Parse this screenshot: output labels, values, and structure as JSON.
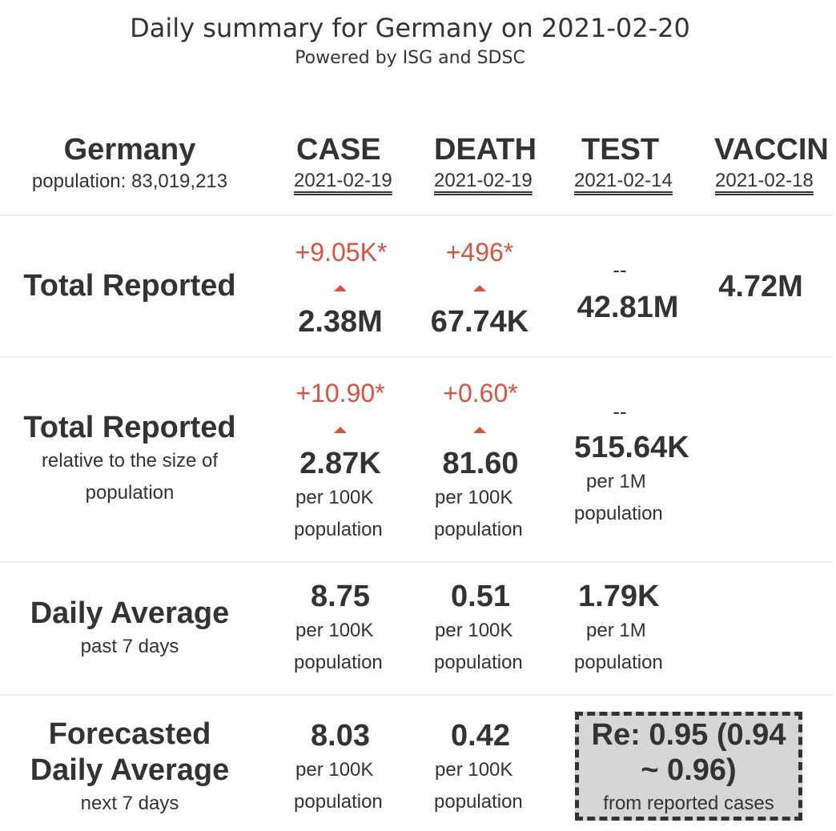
{
  "header": {
    "title": "Daily summary for Germany on 2021-02-20",
    "subtitle": "Powered by ISG and SDSC"
  },
  "country": {
    "name": "Germany",
    "population_label": "population: 83,019,213"
  },
  "columns": {
    "case": {
      "label": "CASE",
      "date": "2021-02-19"
    },
    "death": {
      "label": "DEATH",
      "date": "2021-02-19"
    },
    "test": {
      "label": "TEST",
      "date": "2021-02-14"
    },
    "vaccine": {
      "label": "VACCIN",
      "date": "2021-02-18"
    }
  },
  "rows": {
    "total": {
      "title": "Total Reported",
      "case": {
        "delta": "+9.05K*",
        "value": "2.38M"
      },
      "death": {
        "delta": "+496*",
        "value": "67.74K"
      },
      "test": {
        "delta": "--",
        "value": "42.81M"
      },
      "vaccine": {
        "value": "4.72M"
      }
    },
    "relative": {
      "title": "Total Reported",
      "subtitle_1": "relative to the size of",
      "subtitle_2": "population",
      "case": {
        "delta": "+10.90*",
        "value": "2.87K",
        "unit_1": "per 100K",
        "unit_2": "population"
      },
      "death": {
        "delta": "+0.60*",
        "value": "81.60",
        "unit_1": "per 100K",
        "unit_2": "population"
      },
      "test": {
        "delta": "--",
        "value": "515.64K",
        "unit_1": "per 1M",
        "unit_2": "population"
      }
    },
    "daily": {
      "title": "Daily Average",
      "subtitle": "past 7 days",
      "case": {
        "value": "8.75",
        "unit_1": "per 100K",
        "unit_2": "population"
      },
      "death": {
        "value": "0.51",
        "unit_1": "per 100K",
        "unit_2": "population"
      },
      "test": {
        "value": "1.79K",
        "unit_1": "per 1M",
        "unit_2": "population"
      }
    },
    "forecast": {
      "title_1": "Forecasted",
      "title_2": "Daily Average",
      "subtitle": "next 7 days",
      "case": {
        "value": "8.03",
        "unit_1": "per 100K",
        "unit_2": "population"
      },
      "death": {
        "value": "0.42",
        "unit_1": "per 100K",
        "unit_2": "population"
      },
      "re": {
        "line_1": "Re: 0.95 (0.94",
        "line_2": "~ 0.96)",
        "note": "from reported cases"
      }
    }
  },
  "colors": {
    "text": "#333333",
    "increase": "#d9533f",
    "separator": "#eeeeee",
    "re_box": "#d6d6d6"
  }
}
